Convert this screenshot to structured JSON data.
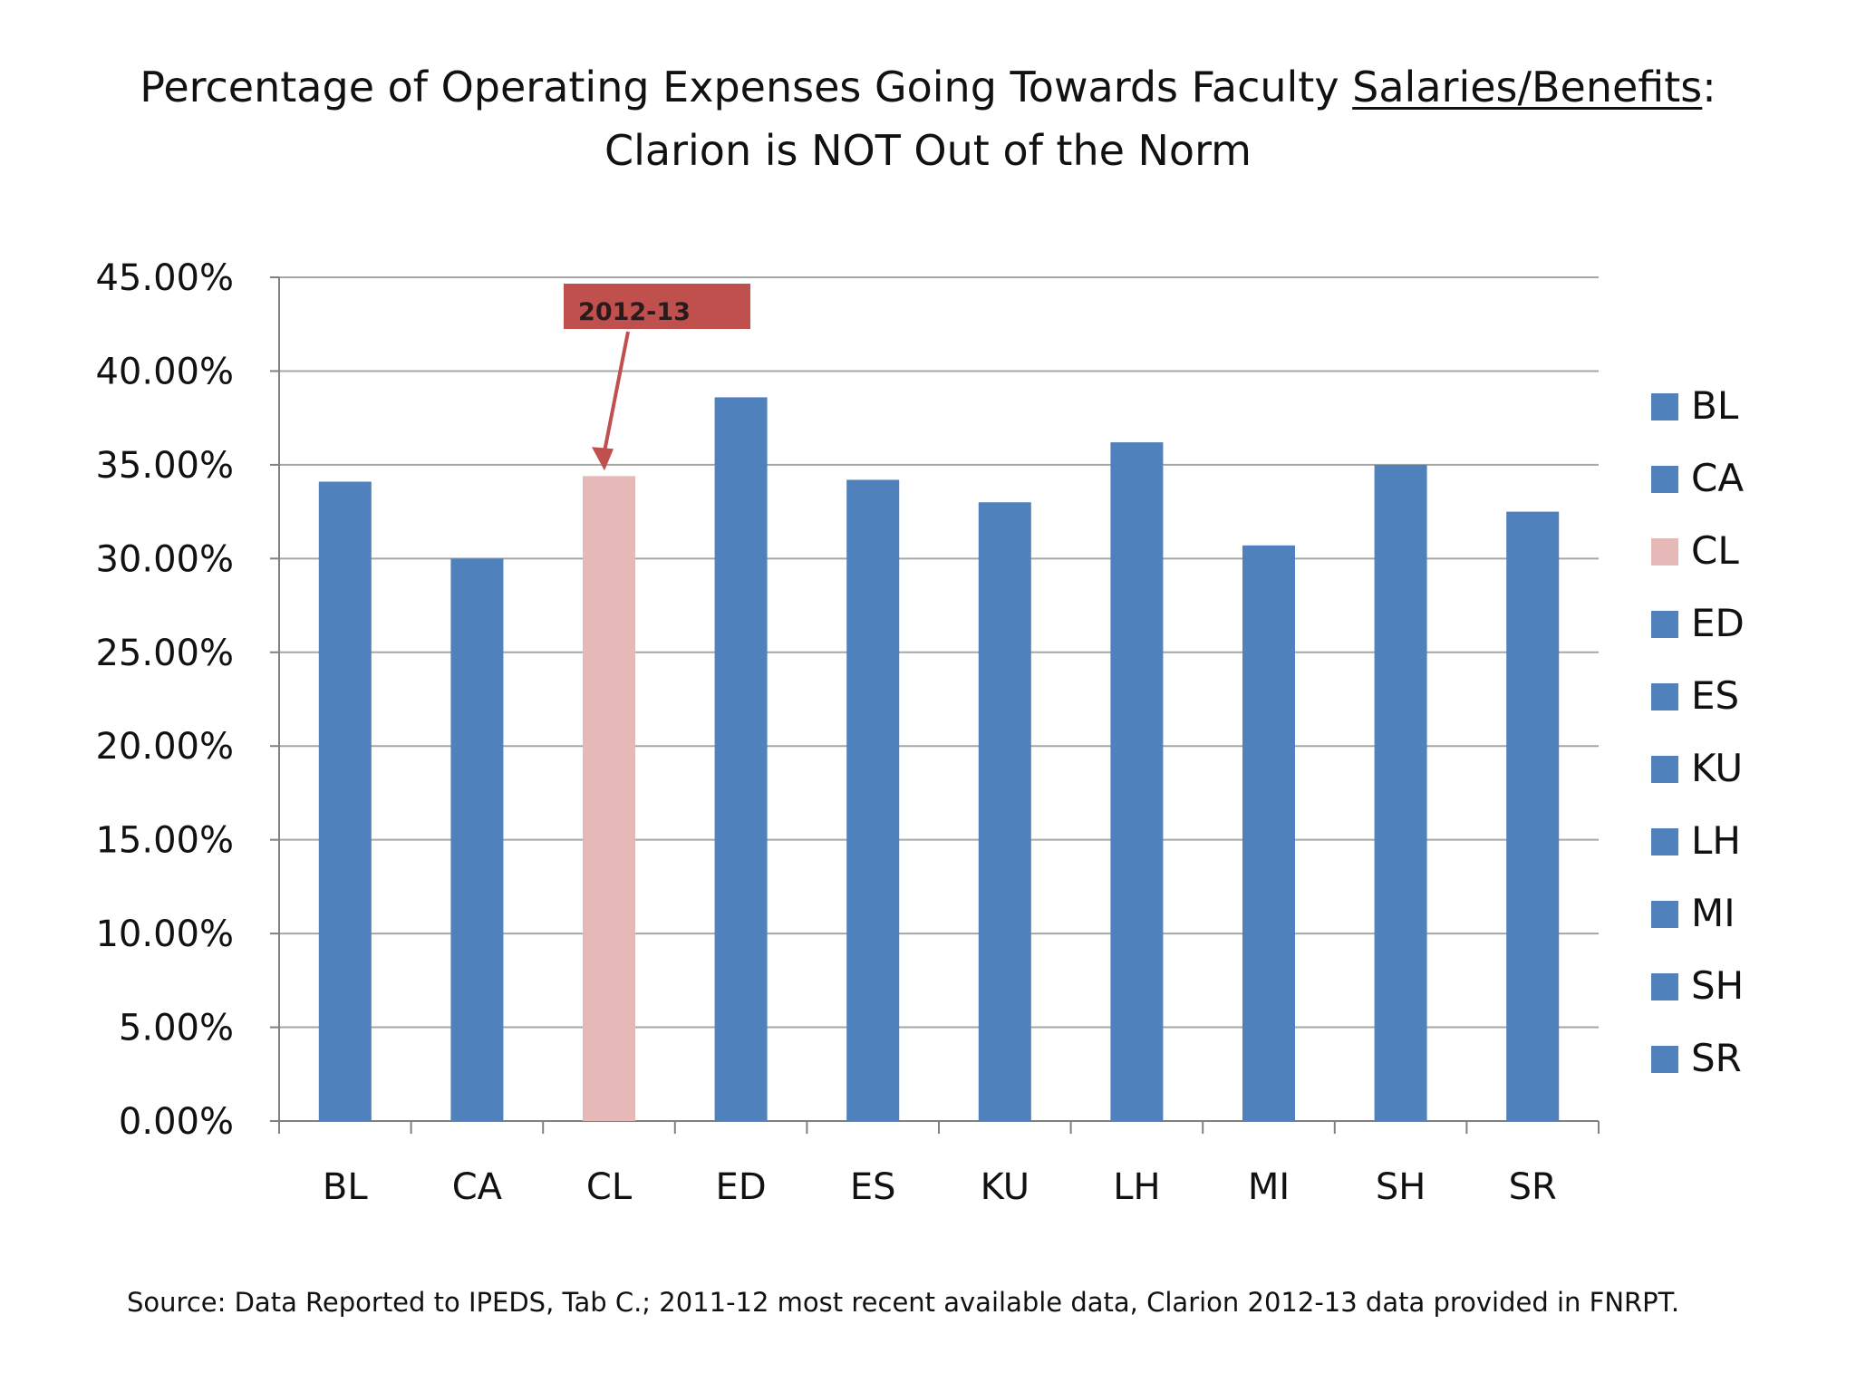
{
  "title": {
    "prefix": "Percentage of Operating Expenses Going Towards Faculty ",
    "underlined": "Salaries/Benefits",
    "suffix": ":",
    "line2": "Clarion is NOT Out of the Norm"
  },
  "source": "Source: Data Reported to IPEDS, Tab C.; 2011-12 most recent available data, Clarion 2012-13 data provided in FNRPT.",
  "annotation": {
    "label": "2012-13",
    "target": "CL",
    "color": "#c0504d"
  },
  "colors": {
    "bar": "#4f81bd",
    "highlight": "#e6b9b8",
    "grid": "#a6a6a6",
    "axis": "#808080"
  },
  "chart_data": {
    "type": "bar",
    "categories": [
      "BL",
      "CA",
      "CL",
      "ED",
      "ES",
      "KU",
      "LH",
      "MI",
      "SH",
      "SR"
    ],
    "values": [
      0.341,
      0.3,
      0.344,
      0.386,
      0.342,
      0.33,
      0.362,
      0.307,
      0.35,
      0.325
    ],
    "highlight": "CL",
    "ylim": [
      0,
      0.45
    ],
    "yticks": [
      0,
      0.05,
      0.1,
      0.15,
      0.2,
      0.25,
      0.3,
      0.35,
      0.4,
      0.45
    ],
    "yticklabels": [
      "0.00%",
      "5.00%",
      "10.00%",
      "15.00%",
      "20.00%",
      "25.00%",
      "30.00%",
      "35.00%",
      "40.00%",
      "45.00%"
    ],
    "grid": true,
    "legend": {
      "placement": "right",
      "entries": [
        "BL",
        "CA",
        "CL",
        "ED",
        "ES",
        "KU",
        "LH",
        "MI",
        "SH",
        "SR"
      ]
    },
    "xlabel": "",
    "ylabel": ""
  }
}
